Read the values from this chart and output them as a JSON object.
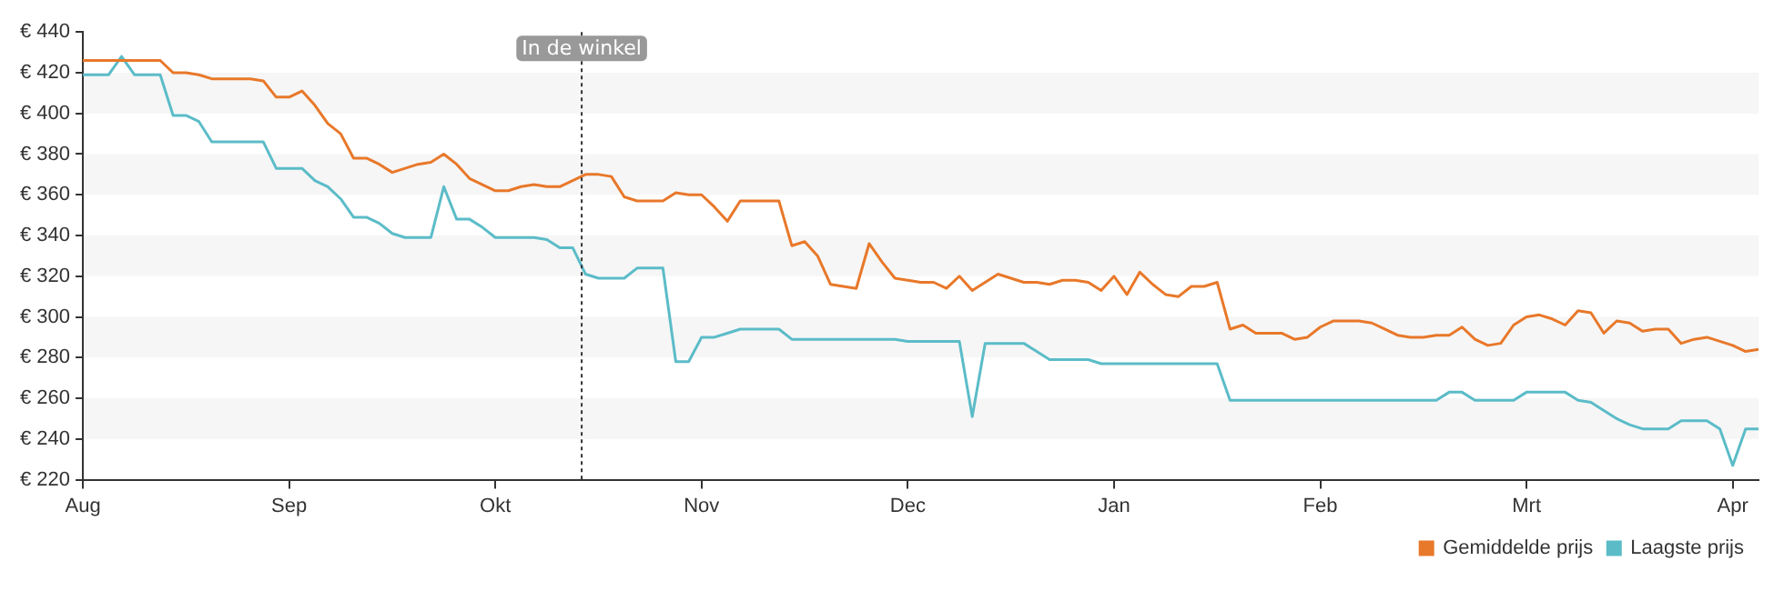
{
  "chart_data": {
    "type": "line",
    "categories": [
      "Aug",
      null,
      null,
      null,
      null,
      null,
      null,
      null,
      null,
      null,
      null,
      null,
      null,
      null,
      null,
      null,
      "Sep",
      null,
      null,
      null,
      null,
      null,
      null,
      null,
      null,
      null,
      null,
      null,
      null,
      null,
      null,
      null,
      "Okt",
      null,
      null,
      null,
      null,
      null,
      null,
      null,
      null,
      null,
      null,
      null,
      null,
      null,
      null,
      null,
      "Nov",
      null,
      null,
      null,
      null,
      null,
      null,
      null,
      null,
      null,
      null,
      null,
      null,
      null,
      null,
      null,
      "Dec",
      null,
      null,
      null,
      null,
      null,
      null,
      null,
      null,
      null,
      null,
      null,
      null,
      null,
      null,
      null,
      "Jan",
      null,
      null,
      null,
      null,
      null,
      null,
      null,
      null,
      null,
      null,
      null,
      null,
      null,
      null,
      null,
      "Feb",
      null,
      null,
      null,
      null,
      null,
      null,
      null,
      null,
      null,
      null,
      null,
      null,
      null,
      null,
      null,
      "Mrt",
      null,
      null,
      null,
      null,
      null,
      null,
      null,
      null,
      null,
      null,
      null,
      null,
      null,
      null,
      null,
      "Apr",
      null,
      null
    ],
    "ylim": [
      220,
      440
    ],
    "yticks": [
      {
        "value": 220,
        "label": "€ 220"
      },
      {
        "value": 240,
        "label": "€ 240"
      },
      {
        "value": 260,
        "label": "€ 260"
      },
      {
        "value": 280,
        "label": "€ 280"
      },
      {
        "value": 300,
        "label": "€ 300"
      },
      {
        "value": 320,
        "label": "€ 320"
      },
      {
        "value": 340,
        "label": "€ 340"
      },
      {
        "value": 360,
        "label": "€ 360"
      },
      {
        "value": 380,
        "label": "€ 380"
      },
      {
        "value": 400,
        "label": "€ 400"
      },
      {
        "value": 420,
        "label": "€ 420"
      },
      {
        "value": 440,
        "label": "€ 440"
      }
    ],
    "legend": "bottom right",
    "marker": "none",
    "line_style": "solid",
    "annotations": [
      "In de winkel"
    ],
    "series": [
      {
        "name": "Gemiddelde prijs",
        "color": "#e8782a",
        "values": [
          426,
          426,
          426,
          426,
          426,
          426,
          426,
          420,
          420,
          419,
          417,
          417,
          417,
          417,
          416,
          408,
          408,
          411,
          404,
          395,
          390,
          378,
          378,
          375,
          371,
          373,
          375,
          376,
          380,
          375,
          368,
          365,
          362,
          362,
          364,
          365,
          364,
          364,
          367,
          370,
          370,
          369,
          359,
          357,
          357,
          357,
          361,
          360,
          360,
          354,
          347,
          357,
          357,
          357,
          357,
          335,
          337,
          330,
          316,
          315,
          314,
          336,
          327,
          319,
          318,
          317,
          317,
          314,
          320,
          313,
          317,
          321,
          319,
          317,
          317,
          316,
          318,
          318,
          317,
          313,
          320,
          311,
          322,
          316,
          311,
          310,
          315,
          315,
          317,
          294,
          296,
          292,
          292,
          292,
          289,
          290,
          295,
          298,
          298,
          298,
          297,
          294,
          291,
          290,
          290,
          291,
          291,
          295,
          289,
          286,
          287,
          296,
          300,
          301,
          299,
          296,
          303,
          302,
          292,
          298,
          297,
          293,
          294,
          294,
          287,
          289,
          290,
          288,
          286,
          283,
          284
        ]
      },
      {
        "name": "Laagste prijs",
        "color": "#5bbcc8",
        "values": [
          419,
          419,
          419,
          428,
          419,
          419,
          419,
          399,
          399,
          396,
          386,
          386,
          386,
          386,
          386,
          373,
          373,
          373,
          367,
          364,
          358,
          349,
          349,
          346,
          341,
          339,
          339,
          339,
          364,
          348,
          348,
          344,
          339,
          339,
          339,
          339,
          338,
          334,
          334,
          321,
          319,
          319,
          319,
          324,
          324,
          324,
          278,
          278,
          290,
          290,
          292,
          294,
          294,
          294,
          294,
          289,
          289,
          289,
          289,
          289,
          289,
          289,
          289,
          289,
          288,
          288,
          288,
          288,
          288,
          251,
          287,
          287,
          287,
          287,
          283,
          279,
          279,
          279,
          279,
          277,
          277,
          277,
          277,
          277,
          277,
          277,
          277,
          277,
          277,
          259,
          259,
          259,
          259,
          259,
          259,
          259,
          259,
          259,
          259,
          259,
          259,
          259,
          259,
          259,
          259,
          259,
          263,
          263,
          259,
          259,
          259,
          259,
          263,
          263,
          263,
          263,
          259,
          258,
          254,
          250,
          247,
          245,
          245,
          245,
          249,
          249,
          249,
          245,
          227,
          245,
          245
        ]
      }
    ]
  }
}
